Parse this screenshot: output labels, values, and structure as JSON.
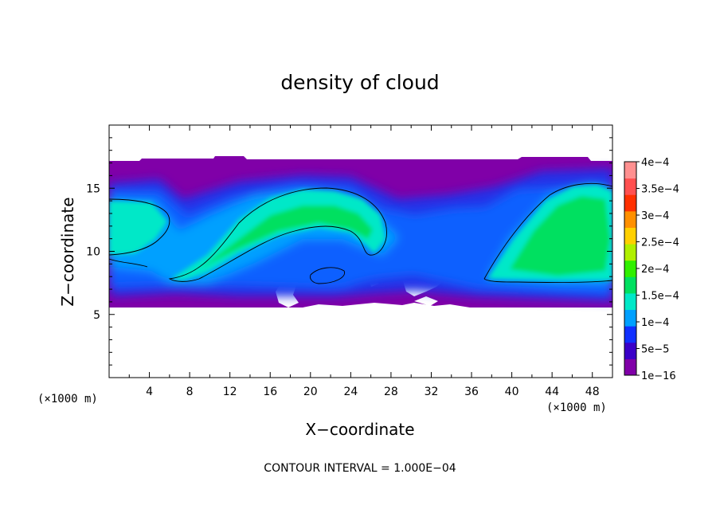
{
  "chart_data": {
    "type": "heatmap",
    "title": "density of cloud",
    "xlabel": "X−coordinate",
    "ylabel": "Z−coordinate",
    "x_unit": "(×1000 m)",
    "z_unit": "(×1000 m)",
    "xlim": [
      0,
      50
    ],
    "ylim": [
      0,
      20
    ],
    "x_ticks": [
      "4",
      "8",
      "12",
      "16",
      "20",
      "24",
      "28",
      "32",
      "36",
      "40",
      "44",
      "48"
    ],
    "y_ticks": [
      "5",
      "10",
      "15"
    ],
    "footer": "CONTOUR INTERVAL = 1.000E−04",
    "contour_interval": 0.0001,
    "colorbar": {
      "labels": [
        "1e−16",
        "5e−5",
        "1e−4",
        "1.5e−4",
        "2e−4",
        "2.5e−4",
        "3e−4",
        "3.5e−4",
        "4e−4"
      ],
      "values": [
        1e-16,
        5e-05,
        0.0001,
        0.00015,
        0.0002,
        0.00025,
        0.0003,
        0.00035,
        0.0004
      ],
      "colors": [
        "#8000a8",
        "#3a00c8",
        "#1030ff",
        "#00a0ff",
        "#00e8c8",
        "#00e060",
        "#30f000",
        "#b0f000",
        "#ffd000",
        "#ff9000",
        "#ff3000",
        "#ff5050",
        "#ff9090"
      ]
    },
    "grid": false,
    "legend_position": "right"
  }
}
